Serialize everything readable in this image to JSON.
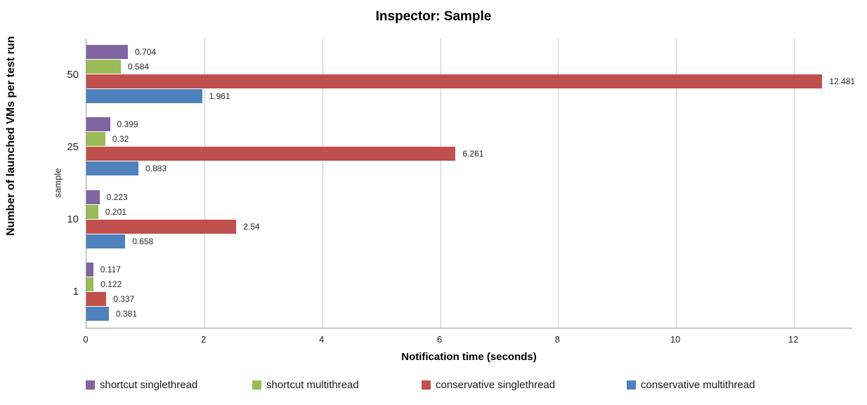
{
  "chart_data": {
    "type": "bar",
    "orientation": "horizontal",
    "title": "Inspector: Sample",
    "xlabel": "Notification time (seconds)",
    "ylabel": "Number of launched VMs per test run",
    "ylabel_secondary": "sample",
    "categories": [
      "50",
      "25",
      "10",
      "1"
    ],
    "series": [
      {
        "name": "shortcut singlethread",
        "color": "#8064A2",
        "values": [
          0.704,
          0.399,
          0.223,
          0.117
        ],
        "labels": [
          "0.704",
          "0.399",
          "0.223",
          "0.117"
        ]
      },
      {
        "name": "shortcut multithread",
        "color": "#9BBB59",
        "values": [
          0.584,
          0.32,
          0.201,
          0.122
        ],
        "labels": [
          "0.584",
          "0.32",
          "0.201",
          "0.122"
        ]
      },
      {
        "name": "conservative singlethread",
        "color": "#C0504D",
        "values": [
          12.481,
          6.261,
          2.54,
          0.337
        ],
        "labels": [
          "12.481",
          "6.261",
          "2.54",
          "0.337"
        ]
      },
      {
        "name": "conservative multithread",
        "color": "#4F81BD",
        "values": [
          1.961,
          0.883,
          0.658,
          0.381
        ],
        "labels": [
          "1.961",
          "0.883",
          "0.658",
          "0.381"
        ]
      }
    ],
    "x_ticks": [
      "0",
      "2",
      "4",
      "6",
      "8",
      "10",
      "12"
    ],
    "xlim": [
      0,
      13
    ],
    "grid": true,
    "legend_position": "bottom",
    "colors": {
      "gridline": "#C9C9C9",
      "axis": "#9B9B9B",
      "label_text": "#262626"
    }
  }
}
